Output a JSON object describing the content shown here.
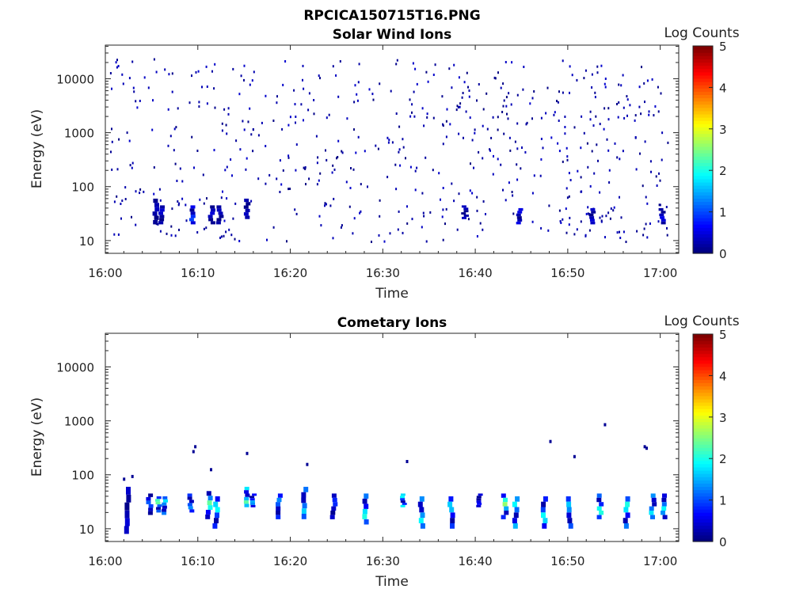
{
  "figure_title": "RPCICA150715T16.PNG",
  "colorbar": {
    "label": "Log Counts",
    "ticks": [
      "0",
      "1",
      "2",
      "3",
      "4",
      "5"
    ],
    "range": [
      0,
      5
    ],
    "colormap": "jet"
  },
  "chart_data": [
    {
      "type": "heatmap",
      "title": "Solar Wind Ions",
      "xlabel": "Time",
      "ylabel": "Energy (eV)",
      "x_ticks": [
        "16:00",
        "16:10",
        "16:20",
        "16:30",
        "16:40",
        "16:50",
        "17:00"
      ],
      "xlim_minutes": [
        0,
        62
      ],
      "y_ticks": [
        "10",
        "100",
        "1000",
        "10000"
      ],
      "ylim": [
        5.8,
        42000
      ],
      "y_scale": "log",
      "clim": [
        0,
        5
      ],
      "description_of_data": "Sparse log-count pixels (mostly ~0) scattered 10 eV–40 keV, denser bands near 10–60 eV",
      "cells": [
        {
          "t": 5.5,
          "e_lo": 20,
          "e_hi": 60,
          "v": 0.3
        },
        {
          "t": 6.0,
          "e_lo": 20,
          "e_hi": 45,
          "v": 0.4
        },
        {
          "t": 9.4,
          "e_lo": 20,
          "e_hi": 45,
          "v": 0.9
        },
        {
          "t": 11.5,
          "e_lo": 20,
          "e_hi": 45,
          "v": 0.4
        },
        {
          "t": 12.4,
          "e_lo": 20,
          "e_hi": 45,
          "v": 0.3
        },
        {
          "t": 15.3,
          "e_lo": 25,
          "e_hi": 60,
          "v": 0.3
        },
        {
          "t": 38.9,
          "e_lo": 25,
          "e_hi": 45,
          "v": 0.3
        },
        {
          "t": 44.8,
          "e_lo": 20,
          "e_hi": 40,
          "v": 0.5
        },
        {
          "t": 52.7,
          "e_lo": 20,
          "e_hi": 40,
          "v": 0.4
        },
        {
          "t": 60.2,
          "e_lo": 20,
          "e_hi": 40,
          "v": 0.5
        }
      ]
    },
    {
      "type": "heatmap",
      "title": "Cometary Ions",
      "xlabel": "Time",
      "ylabel": "Energy (eV)",
      "x_ticks": [
        "16:00",
        "16:10",
        "16:20",
        "16:30",
        "16:40",
        "16:50",
        "17:00"
      ],
      "xlim_minutes": [
        0,
        62
      ],
      "y_ticks": [
        "10",
        "100",
        "1000",
        "10000"
      ],
      "ylim": [
        5.8,
        42000
      ],
      "y_scale": "log",
      "clim": [
        0,
        5
      ],
      "cells": [
        {
          "t": 2.4,
          "e_lo": 8,
          "e_hi": 60,
          "v": 0.4
        },
        {
          "t": 4.8,
          "e_lo": 18,
          "e_hi": 45,
          "v": 1.0
        },
        {
          "t": 5.8,
          "e_lo": 20,
          "e_hi": 40,
          "v": 2.3
        },
        {
          "t": 6.4,
          "e_lo": 18,
          "e_hi": 40,
          "v": 1.6
        },
        {
          "t": 9.2,
          "e_lo": 20,
          "e_hi": 45,
          "v": 1.2
        },
        {
          "t": 11.2,
          "e_lo": 15,
          "e_hi": 50,
          "v": 2.2
        },
        {
          "t": 12.0,
          "e_lo": 10,
          "e_hi": 40,
          "v": 1.8
        },
        {
          "t": 15.2,
          "e_lo": 25,
          "e_hi": 60,
          "v": 2.1
        },
        {
          "t": 16.0,
          "e_lo": 25,
          "e_hi": 45,
          "v": 1.4
        },
        {
          "t": 18.8,
          "e_lo": 15,
          "e_hi": 45,
          "v": 1.2
        },
        {
          "t": 21.6,
          "e_lo": 15,
          "e_hi": 60,
          "v": 1.5
        },
        {
          "t": 24.7,
          "e_lo": 15,
          "e_hi": 45,
          "v": 0.8
        },
        {
          "t": 28.2,
          "e_lo": 12,
          "e_hi": 45,
          "v": 1.9
        },
        {
          "t": 32.2,
          "e_lo": 25,
          "e_hi": 45,
          "v": 1.8
        },
        {
          "t": 34.2,
          "e_lo": 10,
          "e_hi": 40,
          "v": 1.7
        },
        {
          "t": 37.4,
          "e_lo": 10,
          "e_hi": 40,
          "v": 1.6
        },
        {
          "t": 40.5,
          "e_lo": 25,
          "e_hi": 45,
          "v": 0.6
        },
        {
          "t": 43.2,
          "e_lo": 15,
          "e_hi": 45,
          "v": 2.4
        },
        {
          "t": 44.4,
          "e_lo": 10,
          "e_hi": 40,
          "v": 1.7
        },
        {
          "t": 47.5,
          "e_lo": 10,
          "e_hi": 40,
          "v": 1.8
        },
        {
          "t": 50.2,
          "e_lo": 10,
          "e_hi": 40,
          "v": 1.5
        },
        {
          "t": 53.5,
          "e_lo": 15,
          "e_hi": 45,
          "v": 2.0
        },
        {
          "t": 56.4,
          "e_lo": 10,
          "e_hi": 40,
          "v": 1.9
        },
        {
          "t": 59.2,
          "e_lo": 15,
          "e_hi": 45,
          "v": 1.6
        },
        {
          "t": 60.4,
          "e_lo": 15,
          "e_hi": 45,
          "v": 1.7
        }
      ]
    }
  ]
}
